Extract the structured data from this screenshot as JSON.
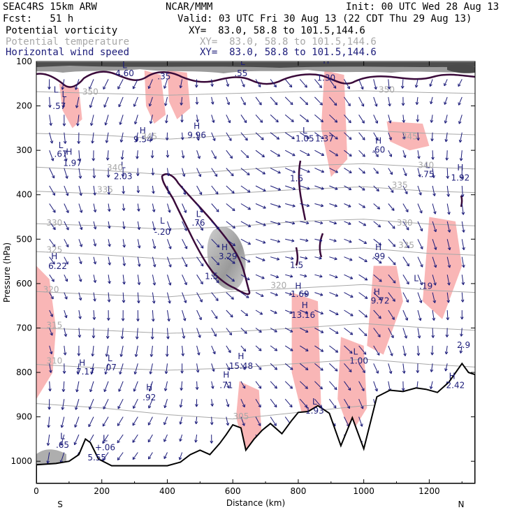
{
  "header": {
    "model": "SEAC4RS 15km ARW",
    "org": "NCAR/MMM",
    "init": "Init: 00 UTC Wed 28 Aug 13",
    "fcst": "Fcst:   51 h",
    "valid": "Valid: 03 UTC Fri 30 Aug 13 (22 CDT Thu 29 Aug 13)",
    "fields": [
      {
        "name": "Potential vorticity",
        "xy": "XY=  83.0, 58.8 to 101.5,144.6"
      },
      {
        "name": "Potential temperature",
        "xy": "XY=  83.0, 58.8 to 101.5,144.6"
      },
      {
        "name": "Horizontal wind speed",
        "xy": "XY=  83.0, 58.8 to 101.5,144.6"
      }
    ]
  },
  "colors": {
    "pv_fill": "#f9b6b6",
    "theta": "#a8a8a8",
    "wind": "#1c1c7a",
    "pv_contour": "#3a0a3a",
    "terrain": "#000000"
  },
  "chart_data": {
    "type": "cross-section",
    "xlabel": "Distance (km)",
    "ylabel": "Pressure (hPa)",
    "xlim": [
      0,
      1340
    ],
    "ylim": [
      1050,
      100
    ],
    "xticks": [
      "0",
      "200",
      "400",
      "600",
      "800",
      "1000",
      "1200"
    ],
    "yticks": [
      "100",
      "200",
      "300",
      "400",
      "500",
      "600",
      "700",
      "800",
      "900",
      "1000"
    ],
    "end_labels": {
      "left": "S",
      "right": "N"
    },
    "theta_labels": [
      {
        "t": "350",
        "x": 165,
        "p": 175
      },
      {
        "t": "345",
        "x": 345,
        "p": 275
      },
      {
        "t": "340",
        "x": 240,
        "p": 345
      },
      {
        "t": "335",
        "x": 210,
        "p": 395
      },
      {
        "t": "330",
        "x": 55,
        "p": 470
      },
      {
        "t": "325",
        "x": 55,
        "p": 530
      },
      {
        "t": "320",
        "x": 45,
        "p": 620
      },
      {
        "t": "315",
        "x": 55,
        "p": 700
      },
      {
        "t": "310",
        "x": 55,
        "p": 780
      },
      {
        "t": "305",
        "x": 625,
        "p": 905
      },
      {
        "t": "320",
        "x": 740,
        "p": 610
      },
      {
        "t": "350",
        "x": 1070,
        "p": 170
      },
      {
        "t": "345",
        "x": 1140,
        "p": 275
      },
      {
        "t": "340",
        "x": 1190,
        "p": 340
      },
      {
        "t": "335",
        "x": 1110,
        "p": 385
      },
      {
        "t": "330",
        "x": 1125,
        "p": 470
      },
      {
        "t": "325",
        "x": 1130,
        "p": 520
      }
    ],
    "extrema": [
      {
        "t": "L",
        "x": 270,
        "p": 115
      },
      {
        "t": "4.60",
        "x": 270,
        "p": 133
      },
      {
        "t": ".35",
        "x": 390,
        "p": 140
      },
      {
        "t": "L",
        "x": 630,
        "p": 108
      },
      {
        "t": ".55",
        "x": 625,
        "p": 133
      },
      {
        "t": "H",
        "x": 885,
        "p": 105
      },
      {
        "t": "1.30",
        "x": 885,
        "p": 143
      },
      {
        "t": "L",
        "x": 60,
        "p": 170
      },
      {
        "t": "L",
        "x": 85,
        "p": 180
      },
      {
        "t": ".57",
        "x": 70,
        "p": 207
      },
      {
        "t": "H",
        "x": 490,
        "p": 252
      },
      {
        "t": "9.96",
        "x": 490,
        "p": 272
      },
      {
        "t": "H",
        "x": 325,
        "p": 262
      },
      {
        "t": "9.54",
        "x": 325,
        "p": 282
      },
      {
        "t": "L",
        "x": 820,
        "p": 262
      },
      {
        "t": "1.05",
        "x": 820,
        "p": 280
      },
      {
        "t": "1.37",
        "x": 880,
        "p": 280
      },
      {
        "t": "H",
        "x": 1045,
        "p": 285
      },
      {
        "t": ".60",
        "x": 1045,
        "p": 305
      },
      {
        "t": "L",
        "x": 75,
        "p": 295
      },
      {
        "t": "H",
        "x": 100,
        "p": 310
      },
      {
        "t": ".67",
        "x": 75,
        "p": 315
      },
      {
        "t": "1.97",
        "x": 110,
        "p": 335
      },
      {
        "t": "L",
        "x": 265,
        "p": 340
      },
      {
        "t": "2.03",
        "x": 265,
        "p": 365
      },
      {
        "t": "L",
        "x": 1195,
        "p": 340
      },
      {
        "t": ".75",
        "x": 1195,
        "p": 360
      },
      {
        "t": "H",
        "x": 1295,
        "p": 345
      },
      {
        "t": "1.92",
        "x": 1295,
        "p": 368
      },
      {
        "t": "1.5",
        "x": 795,
        "p": 370
      },
      {
        "t": "L",
        "x": 495,
        "p": 450
      },
      {
        "t": ".76",
        "x": 495,
        "p": 470
      },
      {
        "t": "L",
        "x": 385,
        "p": 465
      },
      {
        "t": "-.20",
        "x": 385,
        "p": 490
      },
      {
        "t": "H",
        "x": 575,
        "p": 525
      },
      {
        "t": "3.29",
        "x": 585,
        "p": 545
      },
      {
        "t": "H",
        "x": 1045,
        "p": 525
      },
      {
        "t": ".99",
        "x": 1045,
        "p": 545
      },
      {
        "t": "H",
        "x": 55,
        "p": 545
      },
      {
        "t": "6.22",
        "x": 65,
        "p": 567
      },
      {
        "t": "1.5",
        "x": 795,
        "p": 565
      },
      {
        "t": "1.5",
        "x": 535,
        "p": 590
      },
      {
        "t": "L",
        "x": 1160,
        "p": 595
      },
      {
        "t": ".19",
        "x": 1190,
        "p": 612
      },
      {
        "t": "H",
        "x": 800,
        "p": 612
      },
      {
        "t": "H",
        "x": 1040,
        "p": 625
      },
      {
        "t": "9.72",
        "x": 1050,
        "p": 645
      },
      {
        "t": "1.69",
        "x": 805,
        "p": 630
      },
      {
        "t": "H",
        "x": 820,
        "p": 655
      },
      {
        "t": "13.16",
        "x": 815,
        "p": 677
      },
      {
        "t": "2.9",
        "x": 1305,
        "p": 745
      },
      {
        "t": "L",
        "x": 975,
        "p": 760
      },
      {
        "t": "1.00",
        "x": 985,
        "p": 780
      },
      {
        "t": "H",
        "x": 625,
        "p": 770
      },
      {
        "t": "15.48",
        "x": 625,
        "p": 792
      },
      {
        "t": "H",
        "x": 140,
        "p": 785
      },
      {
        "t": "7.17",
        "x": 150,
        "p": 805
      },
      {
        "t": "L",
        "x": 225,
        "p": 775
      },
      {
        "t": ".07",
        "x": 225,
        "p": 795
      },
      {
        "t": "H",
        "x": 580,
        "p": 812
      },
      {
        "t": ".71",
        "x": 580,
        "p": 835
      },
      {
        "t": "H",
        "x": 1270,
        "p": 815
      },
      {
        "t": "2.42",
        "x": 1280,
        "p": 835
      },
      {
        "t": "H",
        "x": 345,
        "p": 840
      },
      {
        "t": ".92",
        "x": 345,
        "p": 863
      },
      {
        "t": "L",
        "x": 850,
        "p": 872
      },
      {
        "t": "1.93",
        "x": 850,
        "p": 893
      },
      {
        "t": "L",
        "x": 80,
        "p": 950
      },
      {
        "t": ".65",
        "x": 80,
        "p": 970
      },
      {
        "t": "L",
        "x": 210,
        "p": 955
      },
      {
        "t": "+.06",
        "x": 210,
        "p": 975
      },
      {
        "t": "5.55",
        "x": 185,
        "p": 998
      }
    ]
  }
}
